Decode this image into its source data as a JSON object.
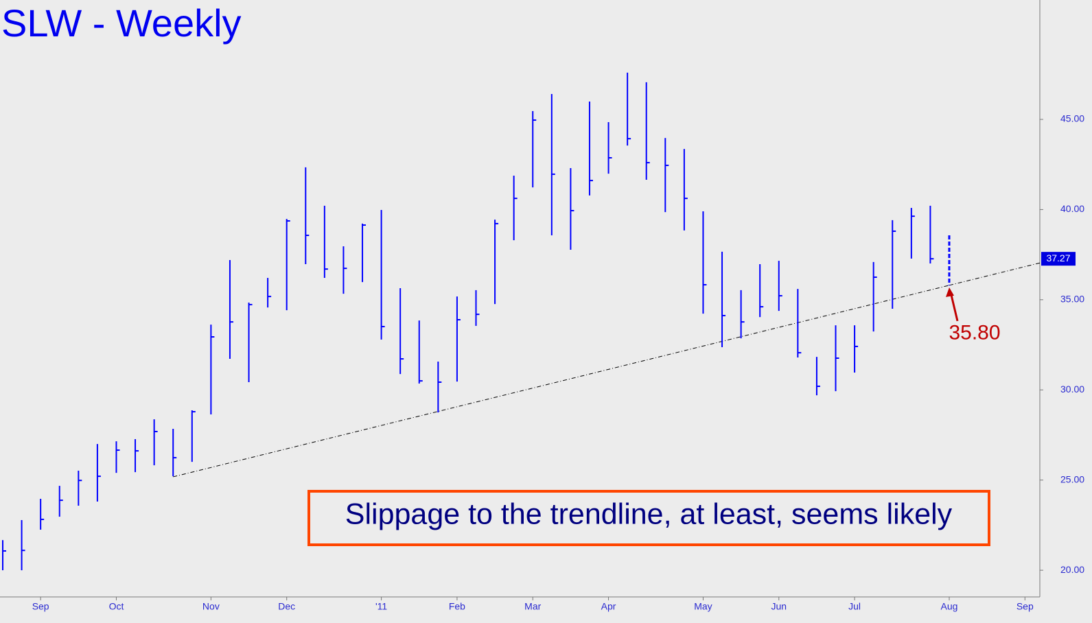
{
  "chart_data": {
    "type": "hlc_bar",
    "title": "SLW - Weekly",
    "annotation": "Slippage to the trendline, at least, seems likely",
    "categories": [
      null,
      null,
      "Sep",
      null,
      null,
      null,
      "Oct",
      null,
      null,
      null,
      null,
      "Nov",
      null,
      null,
      null,
      "Dec",
      null,
      null,
      null,
      null,
      "'11",
      null,
      null,
      null,
      "Feb",
      null,
      null,
      null,
      "Mar",
      null,
      null,
      null,
      "Apr",
      null,
      null,
      null,
      null,
      "May",
      null,
      null,
      null,
      "Jun",
      null,
      null,
      null,
      "Jul",
      null,
      null,
      null,
      null,
      "Aug",
      null,
      null,
      null,
      "Sep"
    ],
    "high": [
      21.67,
      22.78,
      23.96,
      24.68,
      25.52,
      27.0,
      27.15,
      27.27,
      28.37,
      27.84,
      28.87,
      33.62,
      37.2,
      34.84,
      36.21,
      39.48,
      42.34,
      40.21,
      37.96,
      39.22,
      39.98,
      35.64,
      33.85,
      31.57,
      35.18,
      35.53,
      39.44,
      41.88,
      45.46,
      46.41,
      42.3,
      45.99,
      44.85,
      47.59,
      47.06,
      43.97,
      43.36,
      39.9,
      37.66,
      35.53,
      36.97,
      37.16,
      35.6,
      31.83,
      33.58,
      33.58,
      37.09,
      39.41,
      40.09,
      40.21,
      null,
      null,
      null,
      null,
      null
    ],
    "low": [
      20.0,
      20.0,
      22.25,
      22.97,
      23.58,
      23.81,
      25.4,
      25.44,
      25.82,
      25.21,
      26.01,
      28.64,
      31.72,
      30.43,
      34.57,
      34.42,
      36.97,
      36.21,
      35.33,
      35.98,
      32.79,
      30.88,
      30.35,
      28.75,
      30.46,
      33.55,
      34.76,
      38.3,
      41.23,
      38.57,
      37.77,
      40.78,
      41.99,
      43.55,
      41.65,
      39.86,
      38.84,
      34.23,
      32.37,
      32.86,
      34.04,
      34.38,
      31.8,
      29.7,
      29.93,
      30.96,
      33.24,
      34.5,
      37.28,
      37.01,
      null,
      null,
      null,
      null,
      null
    ],
    "close": [
      21.07,
      21.1,
      22.82,
      23.88,
      24.98,
      25.21,
      26.66,
      26.62,
      27.69,
      26.24,
      28.79,
      32.94,
      33.77,
      34.73,
      35.18,
      39.37,
      38.57,
      36.7,
      36.74,
      39.14,
      33.51,
      31.72,
      30.5,
      30.43,
      33.89,
      34.19,
      39.22,
      40.62,
      44.96,
      41.96,
      39.94,
      41.61,
      42.87,
      43.93,
      42.6,
      42.45,
      40.62,
      35.83,
      34.12,
      33.77,
      34.61,
      35.22,
      32.06,
      30.2,
      31.76,
      32.41,
      36.25,
      38.8,
      39.63,
      37.27,
      null,
      null,
      null,
      null,
      null
    ],
    "projection": {
      "high": [
        null,
        null,
        null,
        null,
        null,
        null,
        null,
        null,
        null,
        null,
        null,
        null,
        null,
        null,
        null,
        null,
        null,
        null,
        null,
        null,
        null,
        null,
        null,
        null,
        null,
        null,
        null,
        null,
        null,
        null,
        null,
        null,
        null,
        null,
        null,
        null,
        null,
        null,
        null,
        null,
        null,
        null,
        null,
        null,
        null,
        null,
        null,
        null,
        null,
        null,
        38.57,
        null,
        null,
        null,
        null
      ],
      "low": [
        null,
        null,
        null,
        null,
        null,
        null,
        null,
        null,
        null,
        null,
        null,
        null,
        null,
        null,
        null,
        null,
        null,
        null,
        null,
        null,
        null,
        null,
        null,
        null,
        null,
        null,
        null,
        null,
        null,
        null,
        null,
        null,
        null,
        null,
        null,
        null,
        null,
        null,
        null,
        null,
        null,
        null,
        null,
        null,
        null,
        null,
        null,
        null,
        null,
        null,
        35.8,
        null,
        null,
        null,
        null
      ],
      "value_labels": [
        null,
        null,
        null,
        null,
        null,
        null,
        null,
        null,
        null,
        null,
        null,
        null,
        null,
        null,
        null,
        null,
        null,
        null,
        null,
        null,
        null,
        null,
        null,
        null,
        null,
        null,
        null,
        null,
        null,
        null,
        null,
        null,
        null,
        null,
        null,
        null,
        null,
        null,
        null,
        null,
        null,
        null,
        null,
        null,
        null,
        null,
        null,
        null,
        null,
        null,
        "35.80",
        null,
        null,
        null,
        null
      ]
    },
    "trendline": [
      null,
      null,
      null,
      null,
      null,
      null,
      null,
      null,
      null,
      25.18,
      null,
      null,
      null,
      null,
      null,
      null,
      null,
      null,
      null,
      null,
      null,
      null,
      null,
      null,
      null,
      null,
      null,
      null,
      null,
      null,
      null,
      null,
      null,
      null,
      null,
      null,
      null,
      null,
      null,
      null,
      null,
      null,
      null,
      null,
      null,
      null,
      null,
      null,
      null,
      null,
      35.8,
      null,
      null,
      null,
      null
    ],
    "last_price": {
      "value": 37.27,
      "label": "37.27"
    },
    "ylim": [
      18.52,
      51.62
    ],
    "yticks": [
      {
        "value": 20,
        "label": "20.00"
      },
      {
        "value": 25,
        "label": "25.00"
      },
      {
        "value": 30,
        "label": "30.00"
      },
      {
        "value": 35,
        "label": "35.00"
      },
      {
        "value": 40,
        "label": "40.00"
      },
      {
        "value": 45,
        "label": "45.00"
      }
    ],
    "color": "#0000ff",
    "projection_color": "#c00000",
    "grid": false
  }
}
